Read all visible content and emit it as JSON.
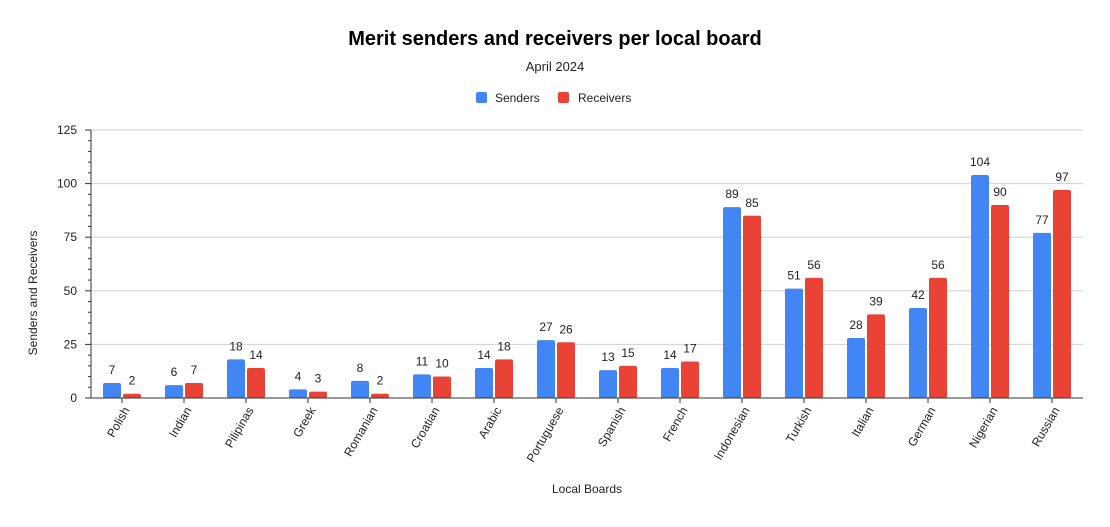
{
  "chart_data": {
    "type": "bar",
    "title": "Merit senders and receivers per local board",
    "subtitle": "April 2024",
    "xlabel": "Local Boards",
    "ylabel": "Senders and Receivers",
    "ylim": [
      0,
      125
    ],
    "yticks": [
      "0",
      "25",
      "50",
      "75",
      "100",
      "125"
    ],
    "grid": true,
    "legend_position": "top",
    "categories": [
      "Polish",
      "Indian",
      "Pilipinas",
      "Greek",
      "Romanian",
      "Croatian",
      "Arabic",
      "Portuguese",
      "Spanish",
      "French",
      "Indonesian",
      "Turkish",
      "Italian",
      "German",
      "Nigerian",
      "Russian"
    ],
    "series": [
      {
        "name": "Senders",
        "color": "#4285f4",
        "values": [
          7,
          6,
          18,
          4,
          8,
          11,
          14,
          27,
          13,
          14,
          89,
          51,
          28,
          42,
          104,
          77
        ]
      },
      {
        "name": "Receivers",
        "color": "#ea4335",
        "values": [
          2,
          7,
          14,
          3,
          2,
          10,
          18,
          26,
          15,
          17,
          85,
          56,
          39,
          56,
          90,
          97
        ]
      }
    ]
  }
}
